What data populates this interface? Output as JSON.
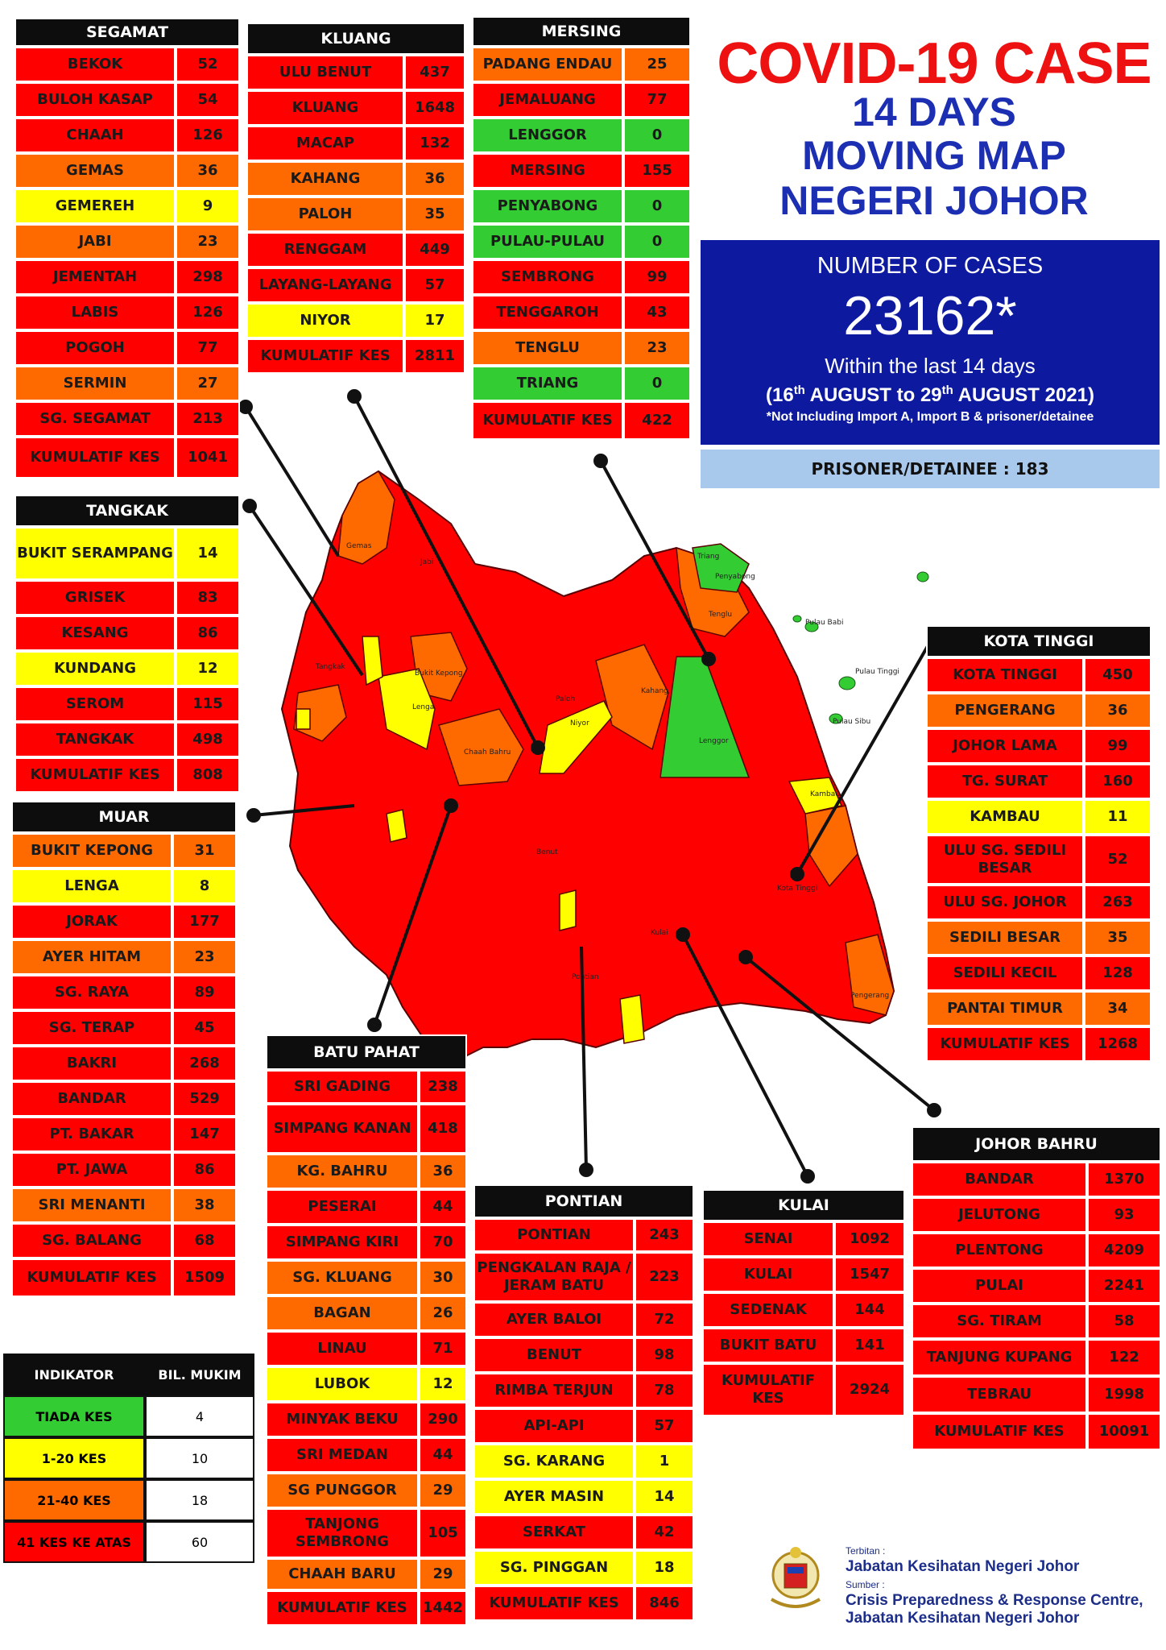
{
  "title": {
    "line1": "COVID-19 CASE",
    "line2": "14 DAYS",
    "line3": "MOVING MAP",
    "line4": "NEGERI JOHOR"
  },
  "summary": {
    "heading": "NUMBER OF CASES",
    "total": "23162*",
    "within": "Within the last 14 days",
    "period_pre": "(16",
    "period_sup1": "th",
    "period_mid": " AUGUST  to 29",
    "period_sup2": "th",
    "period_post": " AUGUST 2021)",
    "note": "*Not Including Import A, Import B & prisoner/detainee",
    "prisoner": "PRISONER/DETAINEE : 183"
  },
  "colors": {
    "red": "#ff0000",
    "orange": "#ff6a00",
    "yellow": "#ffff00",
    "green": "#33cc33"
  },
  "districts": [
    {
      "id": "segamat",
      "name": "SEGAMAT",
      "rows": [
        [
          "BEKOK",
          "52",
          "red"
        ],
        [
          "BULOH KASAP",
          "54",
          "red"
        ],
        [
          "CHAAH",
          "126",
          "red"
        ],
        [
          "GEMAS",
          "36",
          "orange"
        ],
        [
          "GEMEREH",
          "9",
          "yellow"
        ],
        [
          "JABI",
          "23",
          "orange"
        ],
        [
          "JEMENTAH",
          "298",
          "red"
        ],
        [
          "LABIS",
          "126",
          "red"
        ],
        [
          "POGOH",
          "77",
          "red"
        ],
        [
          "SERMIN",
          "27",
          "orange"
        ],
        [
          "SG. SEGAMAT",
          "213",
          "red"
        ],
        [
          "KUMULATIF KES",
          "1041",
          "total"
        ]
      ]
    },
    {
      "id": "kluang",
      "name": "KLUANG",
      "rows": [
        [
          "ULU BENUT",
          "437",
          "red"
        ],
        [
          "KLUANG",
          "1648",
          "red"
        ],
        [
          "MACAP",
          "132",
          "red"
        ],
        [
          "KAHANG",
          "36",
          "orange"
        ],
        [
          "PALOH",
          "35",
          "orange"
        ],
        [
          "RENGGAM",
          "449",
          "red"
        ],
        [
          "LAYANG-LAYANG",
          "57",
          "red"
        ],
        [
          "NIYOR",
          "17",
          "yellow"
        ],
        [
          "KUMULATIF KES",
          "2811",
          "total"
        ]
      ]
    },
    {
      "id": "mersing",
      "name": "MERSING",
      "rows": [
        [
          "PADANG ENDAU",
          "25",
          "orange"
        ],
        [
          "JEMALUANG",
          "77",
          "red"
        ],
        [
          "LENGGOR",
          "0",
          "green"
        ],
        [
          "MERSING",
          "155",
          "red"
        ],
        [
          "PENYABONG",
          "0",
          "green"
        ],
        [
          "PULAU-PULAU",
          "0",
          "green"
        ],
        [
          "SEMBRONG",
          "99",
          "red"
        ],
        [
          "TENGGAROH",
          "43",
          "red"
        ],
        [
          "TENGLU",
          "23",
          "orange"
        ],
        [
          "TRIANG",
          "0",
          "green"
        ],
        [
          "KUMULATIF KES",
          "422",
          "total"
        ]
      ]
    },
    {
      "id": "tangkak",
      "name": "TANGKAK",
      "rows": [
        [
          "BUKIT SERAMPANG",
          "14",
          "yellow"
        ],
        [
          "GRISEK",
          "83",
          "red"
        ],
        [
          "KESANG",
          "86",
          "red"
        ],
        [
          "KUNDANG",
          "12",
          "yellow"
        ],
        [
          "SEROM",
          "115",
          "red"
        ],
        [
          "TANGKAK",
          "498",
          "red"
        ],
        [
          "KUMULATIF KES",
          "808",
          "total"
        ]
      ]
    },
    {
      "id": "muar",
      "name": "MUAR",
      "rows": [
        [
          "BUKIT KEPONG",
          "31",
          "orange"
        ],
        [
          "LENGA",
          "8",
          "yellow"
        ],
        [
          "JORAK",
          "177",
          "red"
        ],
        [
          "AYER HITAM",
          "23",
          "orange"
        ],
        [
          "SG. RAYA",
          "89",
          "red"
        ],
        [
          "SG. TERAP",
          "45",
          "red"
        ],
        [
          "BAKRI",
          "268",
          "red"
        ],
        [
          "BANDAR",
          "529",
          "red"
        ],
        [
          "PT. BAKAR",
          "147",
          "red"
        ],
        [
          "PT. JAWA",
          "86",
          "red"
        ],
        [
          "SRI MENANTI",
          "38",
          "orange"
        ],
        [
          "SG. BALANG",
          "68",
          "red"
        ],
        [
          "KUMULATIF KES",
          "1509",
          "total"
        ]
      ]
    },
    {
      "id": "kotatinggi",
      "name": "KOTA TINGGI",
      "rows": [
        [
          "KOTA TINGGI",
          "450",
          "red"
        ],
        [
          "PENGERANG",
          "36",
          "orange"
        ],
        [
          "JOHOR LAMA",
          "99",
          "red"
        ],
        [
          "TG. SURAT",
          "160",
          "red"
        ],
        [
          "KAMBAU",
          "11",
          "yellow"
        ],
        [
          "ULU SG. SEDILI BESAR",
          "52",
          "red"
        ],
        [
          "ULU  SG. JOHOR",
          "263",
          "red"
        ],
        [
          "SEDILI BESAR",
          "35",
          "orange"
        ],
        [
          "SEDILI KECIL",
          "128",
          "red"
        ],
        [
          "PANTAI TIMUR",
          "34",
          "orange"
        ],
        [
          "KUMULATIF KES",
          "1268",
          "total"
        ]
      ]
    },
    {
      "id": "batupahat",
      "name": "BATU PAHAT",
      "rows": [
        [
          "SRI GADING",
          "238",
          "red"
        ],
        [
          "SIMPANG KANAN",
          "418",
          "red"
        ],
        [
          "KG. BAHRU",
          "36",
          "orange"
        ],
        [
          "PESERAI",
          "44",
          "red"
        ],
        [
          "SIMPANG KIRI",
          "70",
          "red"
        ],
        [
          "SG. KLUANG",
          "30",
          "orange"
        ],
        [
          "BAGAN",
          "26",
          "orange"
        ],
        [
          "LINAU",
          "71",
          "red"
        ],
        [
          "LUBOK",
          "12",
          "yellow"
        ],
        [
          "MINYAK BEKU",
          "290",
          "red"
        ],
        [
          "SRI MEDAN",
          "44",
          "red"
        ],
        [
          "SG PUNGGOR",
          "29",
          "orange"
        ],
        [
          "TANJONG SEMBRONG",
          "105",
          "red"
        ],
        [
          "CHAAH BARU",
          "29",
          "orange"
        ],
        [
          "KUMULATIF KES",
          "1442",
          "total"
        ]
      ]
    },
    {
      "id": "pontian",
      "name": "PONTIAN",
      "rows": [
        [
          "PONTIAN",
          "243",
          "red"
        ],
        [
          "PENGKALAN RAJA / JERAM BATU",
          "223",
          "red"
        ],
        [
          "AYER BALOI",
          "72",
          "red"
        ],
        [
          "BENUT",
          "98",
          "red"
        ],
        [
          "RIMBA TERJUN",
          "78",
          "red"
        ],
        [
          "API-API",
          "57",
          "red"
        ],
        [
          "SG. KARANG",
          "1",
          "yellow"
        ],
        [
          "AYER MASIN",
          "14",
          "yellow"
        ],
        [
          "SERKAT",
          "42",
          "red"
        ],
        [
          "SG. PINGGAN",
          "18",
          "yellow"
        ],
        [
          "KUMULATIF KES",
          "846",
          "total"
        ]
      ]
    },
    {
      "id": "kulai",
      "name": "KULAI",
      "rows": [
        [
          "SENAI",
          "1092",
          "red"
        ],
        [
          "KULAI",
          "1547",
          "red"
        ],
        [
          "SEDENAK",
          "144",
          "red"
        ],
        [
          "BUKIT BATU",
          "141",
          "red"
        ],
        [
          "KUMULATIF KES",
          "2924",
          "total"
        ]
      ]
    },
    {
      "id": "johorbahru",
      "name": "JOHOR BAHRU",
      "rows": [
        [
          "BANDAR",
          "1370",
          "red"
        ],
        [
          "JELUTONG",
          "93",
          "red"
        ],
        [
          "PLENTONG",
          "4209",
          "red"
        ],
        [
          "PULAI",
          "2241",
          "red"
        ],
        [
          "SG. TIRAM",
          "58",
          "red"
        ],
        [
          "TANJUNG KUPANG",
          "122",
          "red"
        ],
        [
          "TEBRAU",
          "1998",
          "red"
        ],
        [
          "KUMULATIF KES",
          "10091",
          "total"
        ]
      ]
    }
  ],
  "legend": {
    "h1": "INDIKATOR",
    "h2": "BIL. MUKIM",
    "rows": [
      [
        "TIADA KES",
        "4",
        "green"
      ],
      [
        "1-20 KES",
        "10",
        "yellow"
      ],
      [
        "21-40 KES",
        "18",
        "orange"
      ],
      [
        "41 KES KE ATAS",
        "60",
        "red"
      ]
    ]
  },
  "credit": {
    "terbitan_label": "Terbitan :",
    "terbitan": "Jabatan Kesihatan Negeri Johor",
    "sumber_label": "Sumber :",
    "sumber1": "Crisis Preparedness & Response Centre,",
    "sumber2": "Jabatan Kesihatan Negeri Johor"
  },
  "map_labels": [
    "Gemas",
    "Bukit Kepong",
    "Jabi",
    "Tangkak",
    "Lenga",
    "Niyor",
    "Paloh",
    "Kahang",
    "Lenggor",
    "Chaah Bahru",
    "Benut",
    "Pontian",
    "Kulai",
    "Kota Tinggi",
    "Kambau",
    "Pengerang",
    "Tenglu",
    "Triang",
    "Penyabong",
    "Pulau Babi",
    "Pulau Tinggi",
    "Pulau Sibu"
  ]
}
